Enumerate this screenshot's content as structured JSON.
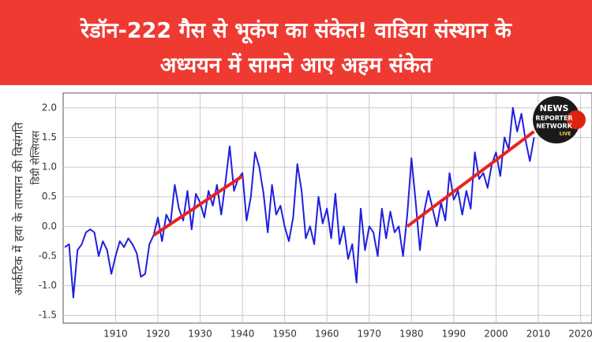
{
  "chart_data": {
    "type": "line",
    "title": [
      "रेडॉन-222 गैस से भूकंप का संकेत! वाडिया संस्थान के",
      "अध्ययन में सामने आए अहम संकेत"
    ],
    "ylabel": [
      "आर्कटिक में हवा के तापमान की विसंगति",
      "डिग्री सेल्सियस"
    ],
    "x": [
      1898,
      1899,
      1900,
      1901,
      1902,
      1903,
      1904,
      1905,
      1906,
      1907,
      1908,
      1909,
      1910,
      1911,
      1912,
      1913,
      1914,
      1915,
      1916,
      1917,
      1918,
      1919,
      1920,
      1921,
      1922,
      1923,
      1924,
      1925,
      1926,
      1927,
      1928,
      1929,
      1930,
      1931,
      1932,
      1933,
      1934,
      1935,
      1936,
      1937,
      1938,
      1939,
      1940,
      1941,
      1942,
      1943,
      1944,
      1945,
      1946,
      1947,
      1948,
      1949,
      1950,
      1951,
      1952,
      1953,
      1954,
      1955,
      1956,
      1957,
      1958,
      1959,
      1960,
      1961,
      1962,
      1963,
      1964,
      1965,
      1966,
      1967,
      1968,
      1969,
      1970,
      1971,
      1972,
      1973,
      1974,
      1975,
      1976,
      1977,
      1978,
      1979,
      1980,
      1981,
      1982,
      1983,
      1984,
      1985,
      1986,
      1987,
      1988,
      1989,
      1990,
      1991,
      1992,
      1993,
      1994,
      1995,
      1996,
      1997,
      1998,
      1999,
      2000,
      2001,
      2002,
      2003,
      2004,
      2005,
      2006,
      2007,
      2008,
      2009
    ],
    "series": [
      {
        "color": "#1f1fe0",
        "values": [
          -0.35,
          -0.3,
          -1.2,
          -0.4,
          -0.3,
          -0.1,
          -0.05,
          -0.1,
          -0.5,
          -0.25,
          -0.4,
          -0.8,
          -0.5,
          -0.25,
          -0.35,
          -0.2,
          -0.3,
          -0.45,
          -0.85,
          -0.8,
          -0.3,
          -0.15,
          0.15,
          -0.25,
          0.2,
          0.05,
          0.7,
          0.3,
          0.1,
          0.6,
          -0.05,
          0.55,
          0.4,
          0.15,
          0.6,
          0.35,
          0.7,
          0.2,
          0.75,
          1.35,
          0.6,
          0.8,
          0.9,
          0.1,
          0.5,
          1.25,
          1.0,
          0.55,
          -0.1,
          0.7,
          0.2,
          0.35,
          0.0,
          -0.25,
          0.15,
          1.05,
          0.6,
          -0.2,
          0.0,
          -0.3,
          0.5,
          0.05,
          0.3,
          -0.2,
          0.55,
          -0.3,
          0.0,
          -0.55,
          -0.3,
          -0.95,
          0.3,
          -0.4,
          0.0,
          -0.1,
          -0.5,
          0.3,
          -0.2,
          0.25,
          -0.1,
          0.0,
          -0.5,
          0.2,
          1.15,
          0.4,
          -0.4,
          0.25,
          0.6,
          0.3,
          0.0,
          0.4,
          0.1,
          0.9,
          0.45,
          0.6,
          0.2,
          0.6,
          0.3,
          1.25,
          0.8,
          0.9,
          0.65,
          1.05,
          1.25,
          0.85,
          1.5,
          1.3,
          2.0,
          1.6,
          1.9,
          1.45,
          1.1,
          1.5
        ]
      }
    ],
    "trends": [
      {
        "color": "#e8231f",
        "x": [
          1919,
          1940
        ],
        "values": [
          -0.15,
          0.85
        ]
      },
      {
        "color": "#e8231f",
        "x": [
          1979,
          2009
        ],
        "values": [
          0.0,
          1.6
        ]
      }
    ],
    "xlim": [
      1897.6,
      2022.7
    ],
    "ylim": [
      -1.63,
      2.25
    ],
    "xticks": [
      1910,
      1920,
      1930,
      1940,
      1950,
      1960,
      1970,
      1980,
      1990,
      2000,
      2010,
      2020
    ],
    "yticks": [
      {
        "value": 2,
        "label": "2.0"
      },
      1.5,
      {
        "value": 1,
        "label": "1.0"
      },
      0.5,
      {
        "value": 0,
        "label": "0.0"
      },
      -0.5,
      {
        "value": -1,
        "label": "-1.0"
      },
      -1.5
    ],
    "grid": true,
    "banner_color": "#ee3a31",
    "logo": [
      "NEWS",
      "REPORTER",
      "NETWORK",
      "LIVE"
    ]
  }
}
